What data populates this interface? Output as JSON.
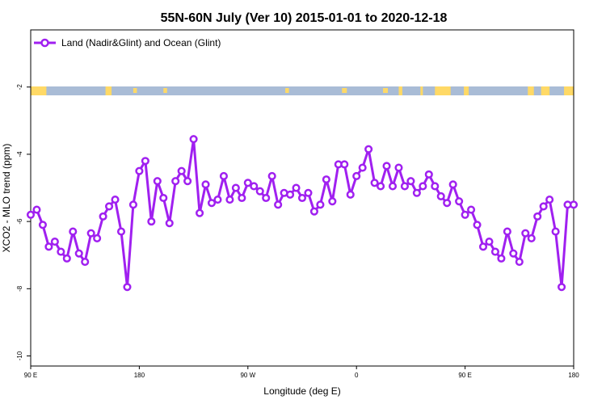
{
  "chart_data": {
    "type": "line",
    "title": "55N-60N July (Ver 10)   2015-01-01 to 2020-12-18",
    "xlabel": "Longitude (deg E)",
    "ylabel": "XCO2 - MLO trend (ppm)",
    "x_ticks": [
      {
        "value": 90,
        "label": "90 E"
      },
      {
        "value": 180,
        "label": "180"
      },
      {
        "value": 270,
        "label": "90 W"
      },
      {
        "value": 360,
        "label": "0"
      },
      {
        "value": 450,
        "label": "90 E"
      },
      {
        "value": 540,
        "label": "180"
      }
    ],
    "y_ticks": [
      -2,
      -4,
      -6,
      -8,
      -10
    ],
    "xlim": [
      90,
      540
    ],
    "ylim": [
      -10.3,
      -0.3
    ],
    "legend": {
      "position": "top-left",
      "label": "Land (Nadir&Glint) and Ocean (Glint)"
    },
    "series_color": "#a020f0",
    "land_color": "#ffd966",
    "ocean_color": "#a9bcd6",
    "series": [
      {
        "name": "Land (Nadir&Glint) and Ocean (Glint)",
        "x": [
          90,
          95,
          100,
          105,
          110,
          115,
          120,
          125,
          130,
          135,
          140,
          145,
          150,
          155,
          160,
          165,
          170,
          175,
          180,
          185,
          190,
          195,
          200,
          205,
          210,
          215,
          220,
          225,
          230,
          235,
          240,
          245,
          250,
          255,
          260,
          265,
          270,
          275,
          280,
          285,
          290,
          295,
          300,
          305,
          310,
          315,
          320,
          325,
          330,
          335,
          340,
          345,
          350,
          355,
          360,
          365,
          370,
          375,
          380,
          385,
          390,
          395,
          400,
          405,
          410,
          415,
          420,
          425,
          430,
          435,
          440,
          445,
          450,
          455,
          460,
          465,
          470,
          475,
          480,
          485,
          490,
          495,
          500,
          505,
          510,
          515,
          520,
          525,
          530,
          535,
          540
        ],
        "values": [
          -5.8,
          -5.65,
          -6.1,
          -6.75,
          -6.6,
          -6.9,
          -7.1,
          -6.3,
          -6.95,
          -7.2,
          -6.35,
          -6.5,
          -5.85,
          -5.55,
          -5.35,
          -6.3,
          -7.95,
          -5.5,
          -4.5,
          -4.2,
          -6.0,
          -4.8,
          -5.3,
          -6.05,
          -4.8,
          -4.5,
          -4.8,
          -3.55,
          -5.75,
          -4.9,
          -5.45,
          -5.35,
          -4.65,
          -5.35,
          -5.0,
          -5.3,
          -4.85,
          -4.95,
          -5.1,
          -5.3,
          -4.65,
          -5.5,
          -5.15,
          -5.2,
          -5.0,
          -5.3,
          -5.15,
          -5.7,
          -5.5,
          -4.75,
          -5.4,
          -4.3,
          -4.3,
          -5.2,
          -4.65,
          -4.4,
          -3.85,
          -4.85,
          -4.95,
          -4.35,
          -4.95,
          -4.4,
          -4.95,
          -4.8,
          -5.15,
          -4.95,
          -4.6,
          -4.95,
          -5.25,
          -5.45,
          -4.9,
          -5.4,
          -5.8,
          -5.65,
          -6.1,
          -6.75,
          -6.6,
          -6.9,
          -7.1,
          -6.3,
          -6.95,
          -7.2,
          -6.35,
          -6.5,
          -5.85,
          -5.55,
          -5.35,
          -6.3,
          -7.95,
          -5.5,
          -5.5
        ]
      }
    ]
  }
}
